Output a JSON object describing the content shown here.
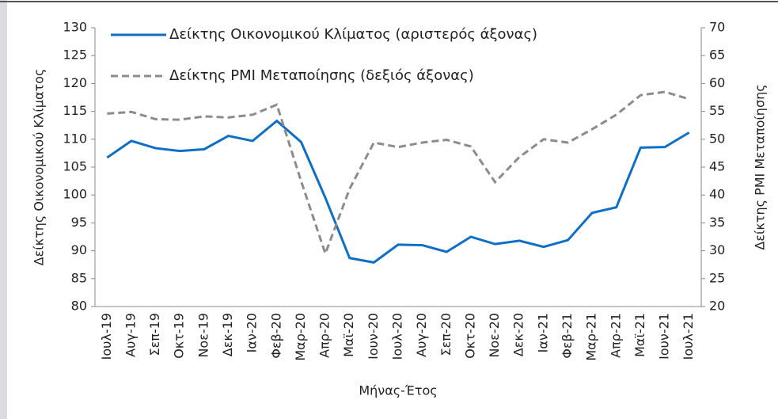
{
  "chart_data": {
    "type": "line",
    "categories": [
      "Ιουλ-19",
      "Αυγ-19",
      "Σεπ-19",
      "Οκτ-19",
      "Νοε-19",
      "Δεκ-19",
      "Ιαν-20",
      "Φεβ-20",
      "Μαρ-20",
      "Απρ-20",
      "Μαϊ-20",
      "Ιουν-20",
      "Ιουλ-20",
      "Αυγ-20",
      "Σεπ-20",
      "Οκτ-20",
      "Νοε-20",
      "Δεκ-20",
      "Ιαν-21",
      "Φεβ-21",
      "Μαρ-21",
      "Απρ-21",
      "Μαϊ-21",
      "Ιουν-21",
      "Ιουλ-21"
    ],
    "series": [
      {
        "name": "Δείκτης Οικονομικού Κλίματος (αριστερός άξονας)",
        "color": "#0f6fc6",
        "dash": false,
        "values": [
          106.7,
          109.7,
          108.4,
          107.9,
          108.2,
          110.6,
          109.7,
          113.3,
          109.5,
          99.5,
          88.7,
          87.9,
          91.1,
          91.0,
          89.8,
          92.5,
          91.2,
          91.8,
          90.7,
          91.9,
          96.8,
          97.8,
          108.5,
          108.6,
          111.2
        ]
      },
      {
        "name": "Δείκτης PMI Μεταποίησης (δεξιός άξονας)",
        "color": "#8c8c8c",
        "dash": true,
        "axis": "y2",
        "values": [
          54.6,
          54.9,
          53.6,
          53.5,
          54.1,
          53.9,
          54.4,
          56.2,
          42.5,
          29.5,
          41.1,
          49.4,
          48.6,
          49.4,
          49.9,
          48.7,
          42.3,
          46.8,
          50.0,
          49.4,
          51.8,
          54.4,
          57.9,
          58.5,
          57.2
        ]
      }
    ],
    "ylabel": "Δείκτης Οικονομικού Κλίματος",
    "y2label": "Δείκτης PMI Μεταποίησης",
    "xlabel": "Μήνας-Έτος",
    "ylim": [
      80,
      130
    ],
    "yticks": [
      80,
      85,
      90,
      95,
      100,
      105,
      110,
      115,
      120,
      125,
      130
    ],
    "y2lim": [
      20,
      70
    ],
    "y2ticks": [
      20,
      25,
      30,
      35,
      40,
      45,
      50,
      55,
      60,
      65,
      70
    ]
  }
}
